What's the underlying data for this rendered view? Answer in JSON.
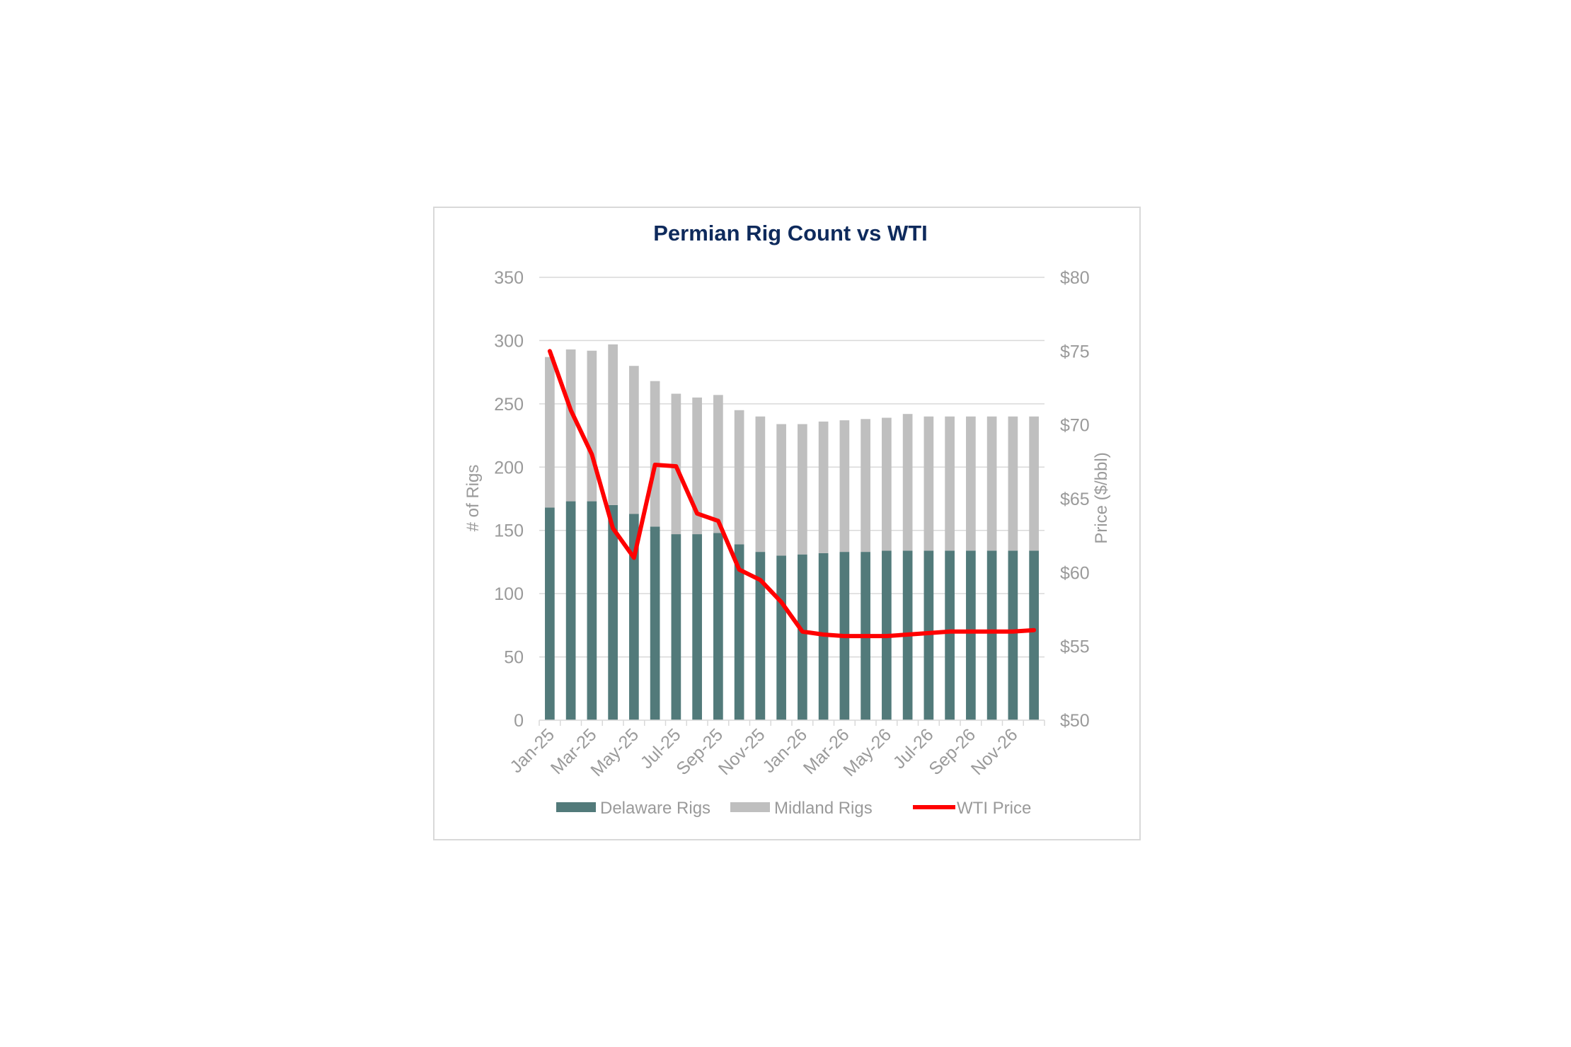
{
  "chart_data": {
    "type": "bar",
    "title": "Permian Rig Count vs WTI",
    "ylabel": "# of Rigs",
    "y2label": "Price ($/bbl)",
    "ylim": [
      0,
      350
    ],
    "y2lim": [
      50,
      80
    ],
    "yticks": [
      0,
      50,
      100,
      150,
      200,
      250,
      300,
      350
    ],
    "y2ticks": [
      "$50",
      "$55",
      "$60",
      "$65",
      "$70",
      "$75",
      "$80"
    ],
    "y2tick_values": [
      50,
      55,
      60,
      65,
      70,
      75,
      80
    ],
    "grid": true,
    "legend": "bottom",
    "stacked": true,
    "categories": [
      "Jan-25",
      "Feb-25",
      "Mar-25",
      "Apr-25",
      "May-25",
      "Jun-25",
      "Jul-25",
      "Aug-25",
      "Sep-25",
      "Oct-25",
      "Nov-25",
      "Dec-25",
      "Jan-26",
      "Feb-26",
      "Mar-26",
      "Apr-26",
      "May-26",
      "Jun-26",
      "Jul-26",
      "Aug-26",
      "Sep-26",
      "Oct-26",
      "Nov-26",
      "Dec-26"
    ],
    "visible_tick_labels": [
      "Jan-25",
      "Mar-25",
      "May-25",
      "Jul-25",
      "Sep-25",
      "Nov-25",
      "Jan-26",
      "Mar-26",
      "May-26",
      "Jul-26",
      "Sep-26",
      "Nov-26"
    ],
    "series": [
      {
        "name": "Delaware Rigs",
        "kind": "bar",
        "axis": "left",
        "color": "#527a7a",
        "values": [
          168,
          173,
          173,
          170,
          163,
          153,
          147,
          147,
          148,
          139,
          133,
          130,
          131,
          132,
          133,
          133,
          134,
          134,
          134,
          134,
          134,
          134,
          134,
          134
        ]
      },
      {
        "name": "Midland Rigs",
        "kind": "bar",
        "axis": "left",
        "color": "#bfbfbf",
        "values": [
          119,
          120,
          119,
          127,
          117,
          115,
          111,
          108,
          109,
          106,
          107,
          104,
          103,
          104,
          104,
          105,
          105,
          108,
          106,
          106,
          106,
          106,
          106,
          106
        ]
      },
      {
        "name": "WTI Price",
        "kind": "line",
        "axis": "right",
        "color": "#ff0000",
        "values": [
          75.0,
          71.0,
          68.0,
          63.0,
          61.0,
          67.3,
          67.2,
          64.0,
          63.5,
          60.2,
          59.5,
          58.0,
          56.0,
          55.8,
          55.7,
          55.7,
          55.7,
          55.8,
          55.9,
          56.0,
          56.0,
          56.0,
          56.0,
          56.1
        ]
      }
    ]
  }
}
